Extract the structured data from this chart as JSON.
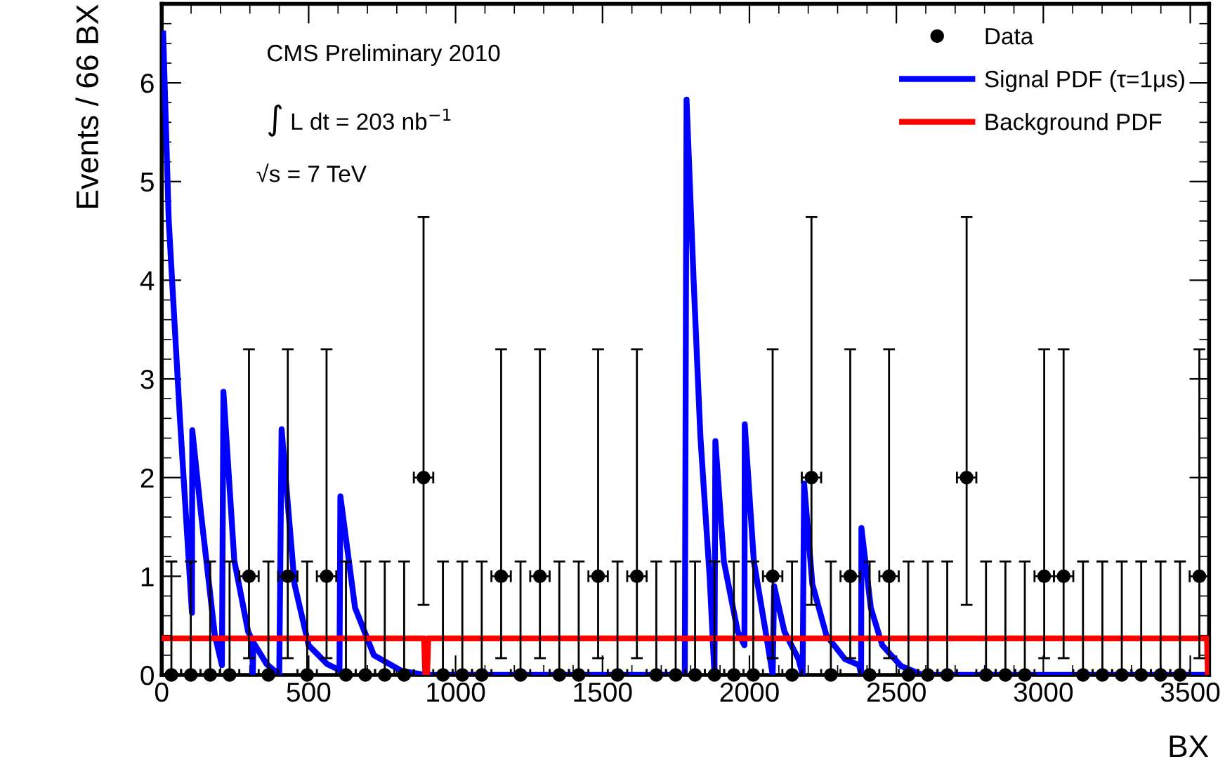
{
  "chart_data": {
    "type": "scatter",
    "xlabel": "BX",
    "ylabel": "Events / 66 BX",
    "annotations": [
      "CMS Preliminary 2010",
      "∫ L dt = 203 nb$^{−1}$",
      "√s = 7 TeV"
    ],
    "xlim": [
      0,
      3564
    ],
    "ylim": [
      0,
      6.8
    ],
    "xticks": [
      0,
      500,
      1000,
      1500,
      2000,
      2500,
      3000,
      3500
    ],
    "yticks": [
      0,
      1,
      2,
      3,
      4,
      5,
      6
    ],
    "legend": "top right",
    "grid": false,
    "series": [
      {
        "name": "Data",
        "marker": "circle",
        "color": "#000000",
        "x": [
          33,
          99,
          165,
          231,
          297,
          363,
          429,
          495,
          561,
          627,
          693,
          759,
          825,
          891,
          957,
          1023,
          1089,
          1155,
          1221,
          1287,
          1353,
          1419,
          1485,
          1551,
          1617,
          1683,
          1749,
          1815,
          1881,
          1947,
          2013,
          2079,
          2145,
          2211,
          2277,
          2343,
          2409,
          2475,
          2541,
          2607,
          2673,
          2739,
          2805,
          2871,
          2937,
          3003,
          3069,
          3135,
          3201,
          3267,
          3333,
          3399,
          3465,
          3531
        ],
        "values": [
          0,
          0,
          0,
          0,
          1,
          0,
          1,
          0,
          1,
          0,
          0,
          0,
          0,
          2,
          0,
          0,
          0,
          1,
          0,
          1,
          0,
          0,
          1,
          0,
          1,
          0,
          0,
          0,
          0,
          0,
          0,
          1,
          0,
          2,
          0,
          1,
          0,
          1,
          0,
          0,
          0,
          2,
          0,
          0,
          0,
          1,
          1,
          0,
          0,
          0,
          0,
          0,
          0,
          1
        ],
        "errors": [
          [
            0,
            1.15
          ],
          [
            0,
            1.15
          ],
          [
            0,
            1.15
          ],
          [
            0,
            1.15
          ],
          [
            0.17,
            3.3
          ],
          [
            0,
            1.15
          ],
          [
            0.17,
            3.3
          ],
          [
            0,
            1.15
          ],
          [
            0.17,
            3.3
          ],
          [
            0,
            1.15
          ],
          [
            0,
            1.15
          ],
          [
            0,
            1.15
          ],
          [
            0,
            1.15
          ],
          [
            0.71,
            4.64
          ],
          [
            0,
            1.15
          ],
          [
            0,
            1.15
          ],
          [
            0,
            1.15
          ],
          [
            0.17,
            3.3
          ],
          [
            0,
            1.15
          ],
          [
            0.17,
            3.3
          ],
          [
            0,
            1.15
          ],
          [
            0,
            1.15
          ],
          [
            0.17,
            3.3
          ],
          [
            0,
            1.15
          ],
          [
            0.17,
            3.3
          ],
          [
            0,
            1.15
          ],
          [
            0,
            1.15
          ],
          [
            0,
            1.15
          ],
          [
            0,
            1.15
          ],
          [
            0,
            1.15
          ],
          [
            0,
            1.15
          ],
          [
            0.17,
            3.3
          ],
          [
            0,
            1.15
          ],
          [
            0.71,
            4.64
          ],
          [
            0,
            1.15
          ],
          [
            0.17,
            3.3
          ],
          [
            0,
            1.15
          ],
          [
            0.17,
            3.3
          ],
          [
            0,
            1.15
          ],
          [
            0,
            1.15
          ],
          [
            0,
            1.15
          ],
          [
            0.71,
            4.64
          ],
          [
            0,
            1.15
          ],
          [
            0,
            1.15
          ],
          [
            0,
            1.15
          ],
          [
            0.17,
            3.3
          ],
          [
            0.17,
            3.3
          ],
          [
            0,
            1.15
          ],
          [
            0,
            1.15
          ],
          [
            0,
            1.15
          ],
          [
            0,
            1.15
          ],
          [
            0,
            1.15
          ],
          [
            0,
            1.15
          ],
          [
            0.17,
            3.3
          ]
        ],
        "xerrors": [
          33,
          33,
          33,
          33,
          33,
          33,
          33,
          33,
          33,
          33,
          33,
          33,
          33,
          33,
          33,
          33,
          33,
          33,
          33,
          33,
          33,
          33,
          33,
          33,
          33,
          33,
          33,
          33,
          33,
          33,
          33,
          33,
          33,
          33,
          33,
          33,
          33,
          33,
          33,
          33,
          33,
          33,
          33,
          33,
          33,
          33,
          33,
          33,
          33,
          33,
          33,
          33,
          33,
          33
        ]
      },
      {
        "name": "Signal PDF (τ=1μs)",
        "type": "line",
        "marker": "none",
        "line_style": "solid",
        "color": "#0000ff",
        "x": [
          5,
          24,
          62,
          103,
          104,
          134,
          181,
          205,
          210,
          247,
          294,
          308,
          310,
          312,
          357,
          400,
          408,
          452,
          500,
          563,
          605,
          608,
          658,
          722,
          817,
          900,
          1780,
          1786,
          1810,
          1833,
          1865,
          1881,
          1884,
          1913,
          1960,
          1983,
          1984,
          2015,
          2055,
          2079,
          2084,
          2119,
          2167,
          2181,
          2186,
          2214,
          2262,
          2325,
          2373,
          2380,
          2381,
          2413,
          2452,
          2516,
          2590,
          3564
        ],
        "values": [
          6.5,
          4.6,
          2.6,
          0.63,
          2.48,
          1.63,
          0.4,
          0.1,
          2.87,
          1.16,
          0.44,
          0.35,
          0,
          0.33,
          0.11,
          0,
          2.49,
          0.92,
          0.3,
          0.11,
          0.05,
          1.81,
          0.68,
          0.2,
          0.04,
          0,
          0,
          5.83,
          4.0,
          2.42,
          0.97,
          0,
          2.37,
          1.15,
          0.44,
          0.3,
          2.54,
          1.15,
          0.44,
          0,
          0.9,
          0.44,
          0.16,
          0,
          1.94,
          0.92,
          0.4,
          0.16,
          0.1,
          0,
          1.49,
          0.68,
          0.3,
          0.09,
          0,
          0
        ]
      },
      {
        "name": "Background PDF",
        "type": "line",
        "marker": "none",
        "line_style": "solid",
        "color": "#ff0000",
        "x": [
          0,
          893,
          897,
          903,
          907,
          3557,
          3560
        ],
        "values": [
          0.37,
          0.37,
          0,
          0,
          0.37,
          0.37,
          0
        ]
      }
    ]
  }
}
